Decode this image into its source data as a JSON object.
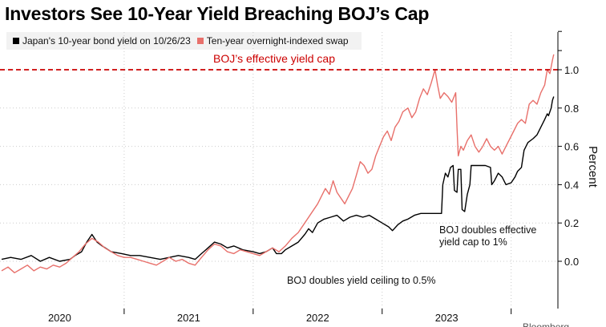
{
  "title": "Investors See 10-Year Yield Breaching BOJ’s Cap",
  "source_fragment": "Bloomberg",
  "legend": [
    {
      "label": "Japan's 10-year bond yield on 10/26/23",
      "color": "#000000"
    },
    {
      "label": "Ten-year overnight-indexed swap",
      "color": "#e8706b"
    }
  ],
  "colors": {
    "jgb": "#000000",
    "swap": "#e8706b",
    "cap": "#cc0000",
    "grid": "#cccccc"
  },
  "chart_data": {
    "type": "line",
    "title": "Investors See 10-Year Yield Breaching BOJ’s Cap",
    "xlabel": "",
    "ylabel": "Percent",
    "xlim": [
      2019.55,
      2023.85
    ],
    "ylim": [
      -0.15,
      1.2
    ],
    "yticks": [
      0.0,
      0.2,
      0.4,
      0.6,
      0.8,
      1.0
    ],
    "ytick_labels": [
      "0.0",
      "0.2",
      "0.4",
      "0.6",
      "0.8",
      "1.0"
    ],
    "xticks": [
      {
        "label": "2020",
        "pos": 2020.0
      },
      {
        "label": "2021",
        "pos": 2021.0
      },
      {
        "label": "2022",
        "pos": 2022.0
      },
      {
        "label": "2023",
        "pos": 2023.0
      }
    ],
    "year_boundaries": [
      2020.5,
      2021.5,
      2022.5,
      2023.5
    ],
    "reference_line": {
      "value": 1.0,
      "label": "BOJ’s effective yield cap",
      "style": "dashed"
    },
    "annotations": [
      {
        "text": "BOJ doubles yield ceiling to 0.5%",
        "x": 2022.55,
        "y": -0.1,
        "lines": [
          "BOJ doubles yield ceiling to 0.5%"
        ]
      },
      {
        "text": "BOJ doubles effective yield cap to 1%",
        "x": 2023.55,
        "y": 0.22,
        "lines": [
          "BOJ doubles effective",
          "yield cap to 1%"
        ]
      }
    ],
    "series": [
      {
        "name": "Japan's 10-year bond yield on 10/26/23",
        "color": "#000000",
        "points": [
          [
            2019.55,
            0.01
          ],
          [
            2019.62,
            0.02
          ],
          [
            2019.7,
            0.01
          ],
          [
            2019.78,
            0.03
          ],
          [
            2019.85,
            0.0
          ],
          [
            2019.92,
            0.02
          ],
          [
            2020.0,
            0.0
          ],
          [
            2020.08,
            0.01
          ],
          [
            2020.12,
            0.03
          ],
          [
            2020.17,
            0.05
          ],
          [
            2020.21,
            0.1
          ],
          [
            2020.25,
            0.14
          ],
          [
            2020.29,
            0.1
          ],
          [
            2020.33,
            0.08
          ],
          [
            2020.4,
            0.05
          ],
          [
            2020.48,
            0.04
          ],
          [
            2020.55,
            0.03
          ],
          [
            2020.62,
            0.03
          ],
          [
            2020.7,
            0.02
          ],
          [
            2020.78,
            0.01
          ],
          [
            2020.85,
            0.02
          ],
          [
            2020.92,
            0.03
          ],
          [
            2021.0,
            0.02
          ],
          [
            2021.05,
            0.01
          ],
          [
            2021.1,
            0.04
          ],
          [
            2021.15,
            0.07
          ],
          [
            2021.2,
            0.1
          ],
          [
            2021.25,
            0.09
          ],
          [
            2021.3,
            0.07
          ],
          [
            2021.35,
            0.08
          ],
          [
            2021.42,
            0.06
          ],
          [
            2021.5,
            0.05
          ],
          [
            2021.55,
            0.04
          ],
          [
            2021.6,
            0.05
          ],
          [
            2021.65,
            0.07
          ],
          [
            2021.68,
            0.04
          ],
          [
            2021.72,
            0.04
          ],
          [
            2021.75,
            0.06
          ],
          [
            2021.8,
            0.08
          ],
          [
            2021.85,
            0.1
          ],
          [
            2021.9,
            0.14
          ],
          [
            2021.93,
            0.17
          ],
          [
            2021.96,
            0.15
          ],
          [
            2022.0,
            0.2
          ],
          [
            2022.05,
            0.22
          ],
          [
            2022.1,
            0.23
          ],
          [
            2022.15,
            0.24
          ],
          [
            2022.2,
            0.21
          ],
          [
            2022.25,
            0.23
          ],
          [
            2022.3,
            0.24
          ],
          [
            2022.35,
            0.23
          ],
          [
            2022.4,
            0.24
          ],
          [
            2022.45,
            0.22
          ],
          [
            2022.5,
            0.2
          ],
          [
            2022.55,
            0.18
          ],
          [
            2022.58,
            0.16
          ],
          [
            2022.62,
            0.19
          ],
          [
            2022.66,
            0.21
          ],
          [
            2022.7,
            0.22
          ],
          [
            2022.75,
            0.24
          ],
          [
            2022.8,
            0.25
          ],
          [
            2022.85,
            0.25
          ],
          [
            2022.9,
            0.25
          ],
          [
            2022.96,
            0.25
          ],
          [
            2022.97,
            0.4
          ],
          [
            2022.99,
            0.46
          ],
          [
            2023.01,
            0.44
          ],
          [
            2023.03,
            0.49
          ],
          [
            2023.05,
            0.5
          ],
          [
            2023.06,
            0.37
          ],
          [
            2023.08,
            0.36
          ],
          [
            2023.09,
            0.48
          ],
          [
            2023.11,
            0.48
          ],
          [
            2023.12,
            0.27
          ],
          [
            2023.14,
            0.26
          ],
          [
            2023.16,
            0.35
          ],
          [
            2023.18,
            0.4
          ],
          [
            2023.19,
            0.5
          ],
          [
            2023.21,
            0.5
          ],
          [
            2023.25,
            0.5
          ],
          [
            2023.3,
            0.5
          ],
          [
            2023.34,
            0.49
          ],
          [
            2023.35,
            0.4
          ],
          [
            2023.37,
            0.42
          ],
          [
            2023.4,
            0.46
          ],
          [
            2023.43,
            0.44
          ],
          [
            2023.46,
            0.4
          ],
          [
            2023.5,
            0.41
          ],
          [
            2023.53,
            0.44
          ],
          [
            2023.55,
            0.47
          ],
          [
            2023.58,
            0.49
          ],
          [
            2023.6,
            0.58
          ],
          [
            2023.63,
            0.62
          ],
          [
            2023.67,
            0.64
          ],
          [
            2023.7,
            0.66
          ],
          [
            2023.73,
            0.7
          ],
          [
            2023.76,
            0.74
          ],
          [
            2023.78,
            0.77
          ],
          [
            2023.79,
            0.76
          ],
          [
            2023.81,
            0.8
          ],
          [
            2023.82,
            0.84
          ],
          [
            2023.83,
            0.86
          ]
        ]
      },
      {
        "name": "Ten-year overnight-indexed swap",
        "color": "#e8706b",
        "points": [
          [
            2019.55,
            -0.05
          ],
          [
            2019.6,
            -0.03
          ],
          [
            2019.65,
            -0.06
          ],
          [
            2019.7,
            -0.04
          ],
          [
            2019.75,
            -0.02
          ],
          [
            2019.8,
            -0.05
          ],
          [
            2019.85,
            -0.03
          ],
          [
            2019.9,
            -0.04
          ],
          [
            2019.95,
            -0.02
          ],
          [
            2020.0,
            -0.03
          ],
          [
            2020.05,
            -0.01
          ],
          [
            2020.1,
            0.02
          ],
          [
            2020.15,
            0.05
          ],
          [
            2020.2,
            0.09
          ],
          [
            2020.25,
            0.12
          ],
          [
            2020.3,
            0.1
          ],
          [
            2020.35,
            0.07
          ],
          [
            2020.4,
            0.05
          ],
          [
            2020.45,
            0.03
          ],
          [
            2020.5,
            0.02
          ],
          [
            2020.55,
            0.02
          ],
          [
            2020.6,
            0.01
          ],
          [
            2020.65,
            0.0
          ],
          [
            2020.7,
            -0.01
          ],
          [
            2020.75,
            -0.02
          ],
          [
            2020.8,
            0.0
          ],
          [
            2020.85,
            0.02
          ],
          [
            2020.9,
            0.0
          ],
          [
            2020.95,
            0.01
          ],
          [
            2021.0,
            -0.01
          ],
          [
            2021.05,
            -0.02
          ],
          [
            2021.1,
            0.02
          ],
          [
            2021.15,
            0.06
          ],
          [
            2021.2,
            0.09
          ],
          [
            2021.25,
            0.08
          ],
          [
            2021.3,
            0.05
          ],
          [
            2021.35,
            0.04
          ],
          [
            2021.4,
            0.06
          ],
          [
            2021.45,
            0.05
          ],
          [
            2021.5,
            0.04
          ],
          [
            2021.55,
            0.03
          ],
          [
            2021.6,
            0.05
          ],
          [
            2021.65,
            0.07
          ],
          [
            2021.7,
            0.05
          ],
          [
            2021.75,
            0.08
          ],
          [
            2021.8,
            0.12
          ],
          [
            2021.85,
            0.15
          ],
          [
            2021.9,
            0.2
          ],
          [
            2021.95,
            0.25
          ],
          [
            2022.0,
            0.3
          ],
          [
            2022.03,
            0.34
          ],
          [
            2022.06,
            0.38
          ],
          [
            2022.09,
            0.35
          ],
          [
            2022.12,
            0.42
          ],
          [
            2022.15,
            0.36
          ],
          [
            2022.18,
            0.33
          ],
          [
            2022.21,
            0.3
          ],
          [
            2022.24,
            0.34
          ],
          [
            2022.27,
            0.38
          ],
          [
            2022.3,
            0.45
          ],
          [
            2022.33,
            0.52
          ],
          [
            2022.36,
            0.5
          ],
          [
            2022.39,
            0.46
          ],
          [
            2022.42,
            0.48
          ],
          [
            2022.45,
            0.55
          ],
          [
            2022.48,
            0.6
          ],
          [
            2022.51,
            0.65
          ],
          [
            2022.54,
            0.68
          ],
          [
            2022.57,
            0.63
          ],
          [
            2022.6,
            0.7
          ],
          [
            2022.63,
            0.73
          ],
          [
            2022.66,
            0.78
          ],
          [
            2022.7,
            0.8
          ],
          [
            2022.73,
            0.75
          ],
          [
            2022.76,
            0.78
          ],
          [
            2022.79,
            0.85
          ],
          [
            2022.82,
            0.9
          ],
          [
            2022.85,
            0.87
          ],
          [
            2022.88,
            0.93
          ],
          [
            2022.91,
            1.0
          ],
          [
            2022.93,
            0.92
          ],
          [
            2022.95,
            0.85
          ],
          [
            2022.98,
            0.88
          ],
          [
            2023.01,
            0.86
          ],
          [
            2023.04,
            0.83
          ],
          [
            2023.07,
            0.88
          ],
          [
            2023.08,
            0.7
          ],
          [
            2023.09,
            0.55
          ],
          [
            2023.11,
            0.6
          ],
          [
            2023.13,
            0.58
          ],
          [
            2023.16,
            0.63
          ],
          [
            2023.19,
            0.66
          ],
          [
            2023.22,
            0.6
          ],
          [
            2023.25,
            0.57
          ],
          [
            2023.28,
            0.6
          ],
          [
            2023.31,
            0.64
          ],
          [
            2023.34,
            0.6
          ],
          [
            2023.37,
            0.58
          ],
          [
            2023.4,
            0.6
          ],
          [
            2023.43,
            0.56
          ],
          [
            2023.46,
            0.6
          ],
          [
            2023.49,
            0.64
          ],
          [
            2023.52,
            0.68
          ],
          [
            2023.55,
            0.72
          ],
          [
            2023.58,
            0.74
          ],
          [
            2023.61,
            0.72
          ],
          [
            2023.64,
            0.82
          ],
          [
            2023.67,
            0.84
          ],
          [
            2023.7,
            0.82
          ],
          [
            2023.73,
            0.88
          ],
          [
            2023.76,
            0.92
          ],
          [
            2023.78,
            1.0
          ],
          [
            2023.8,
            0.98
          ],
          [
            2023.82,
            1.05
          ],
          [
            2023.83,
            1.08
          ]
        ]
      }
    ]
  }
}
